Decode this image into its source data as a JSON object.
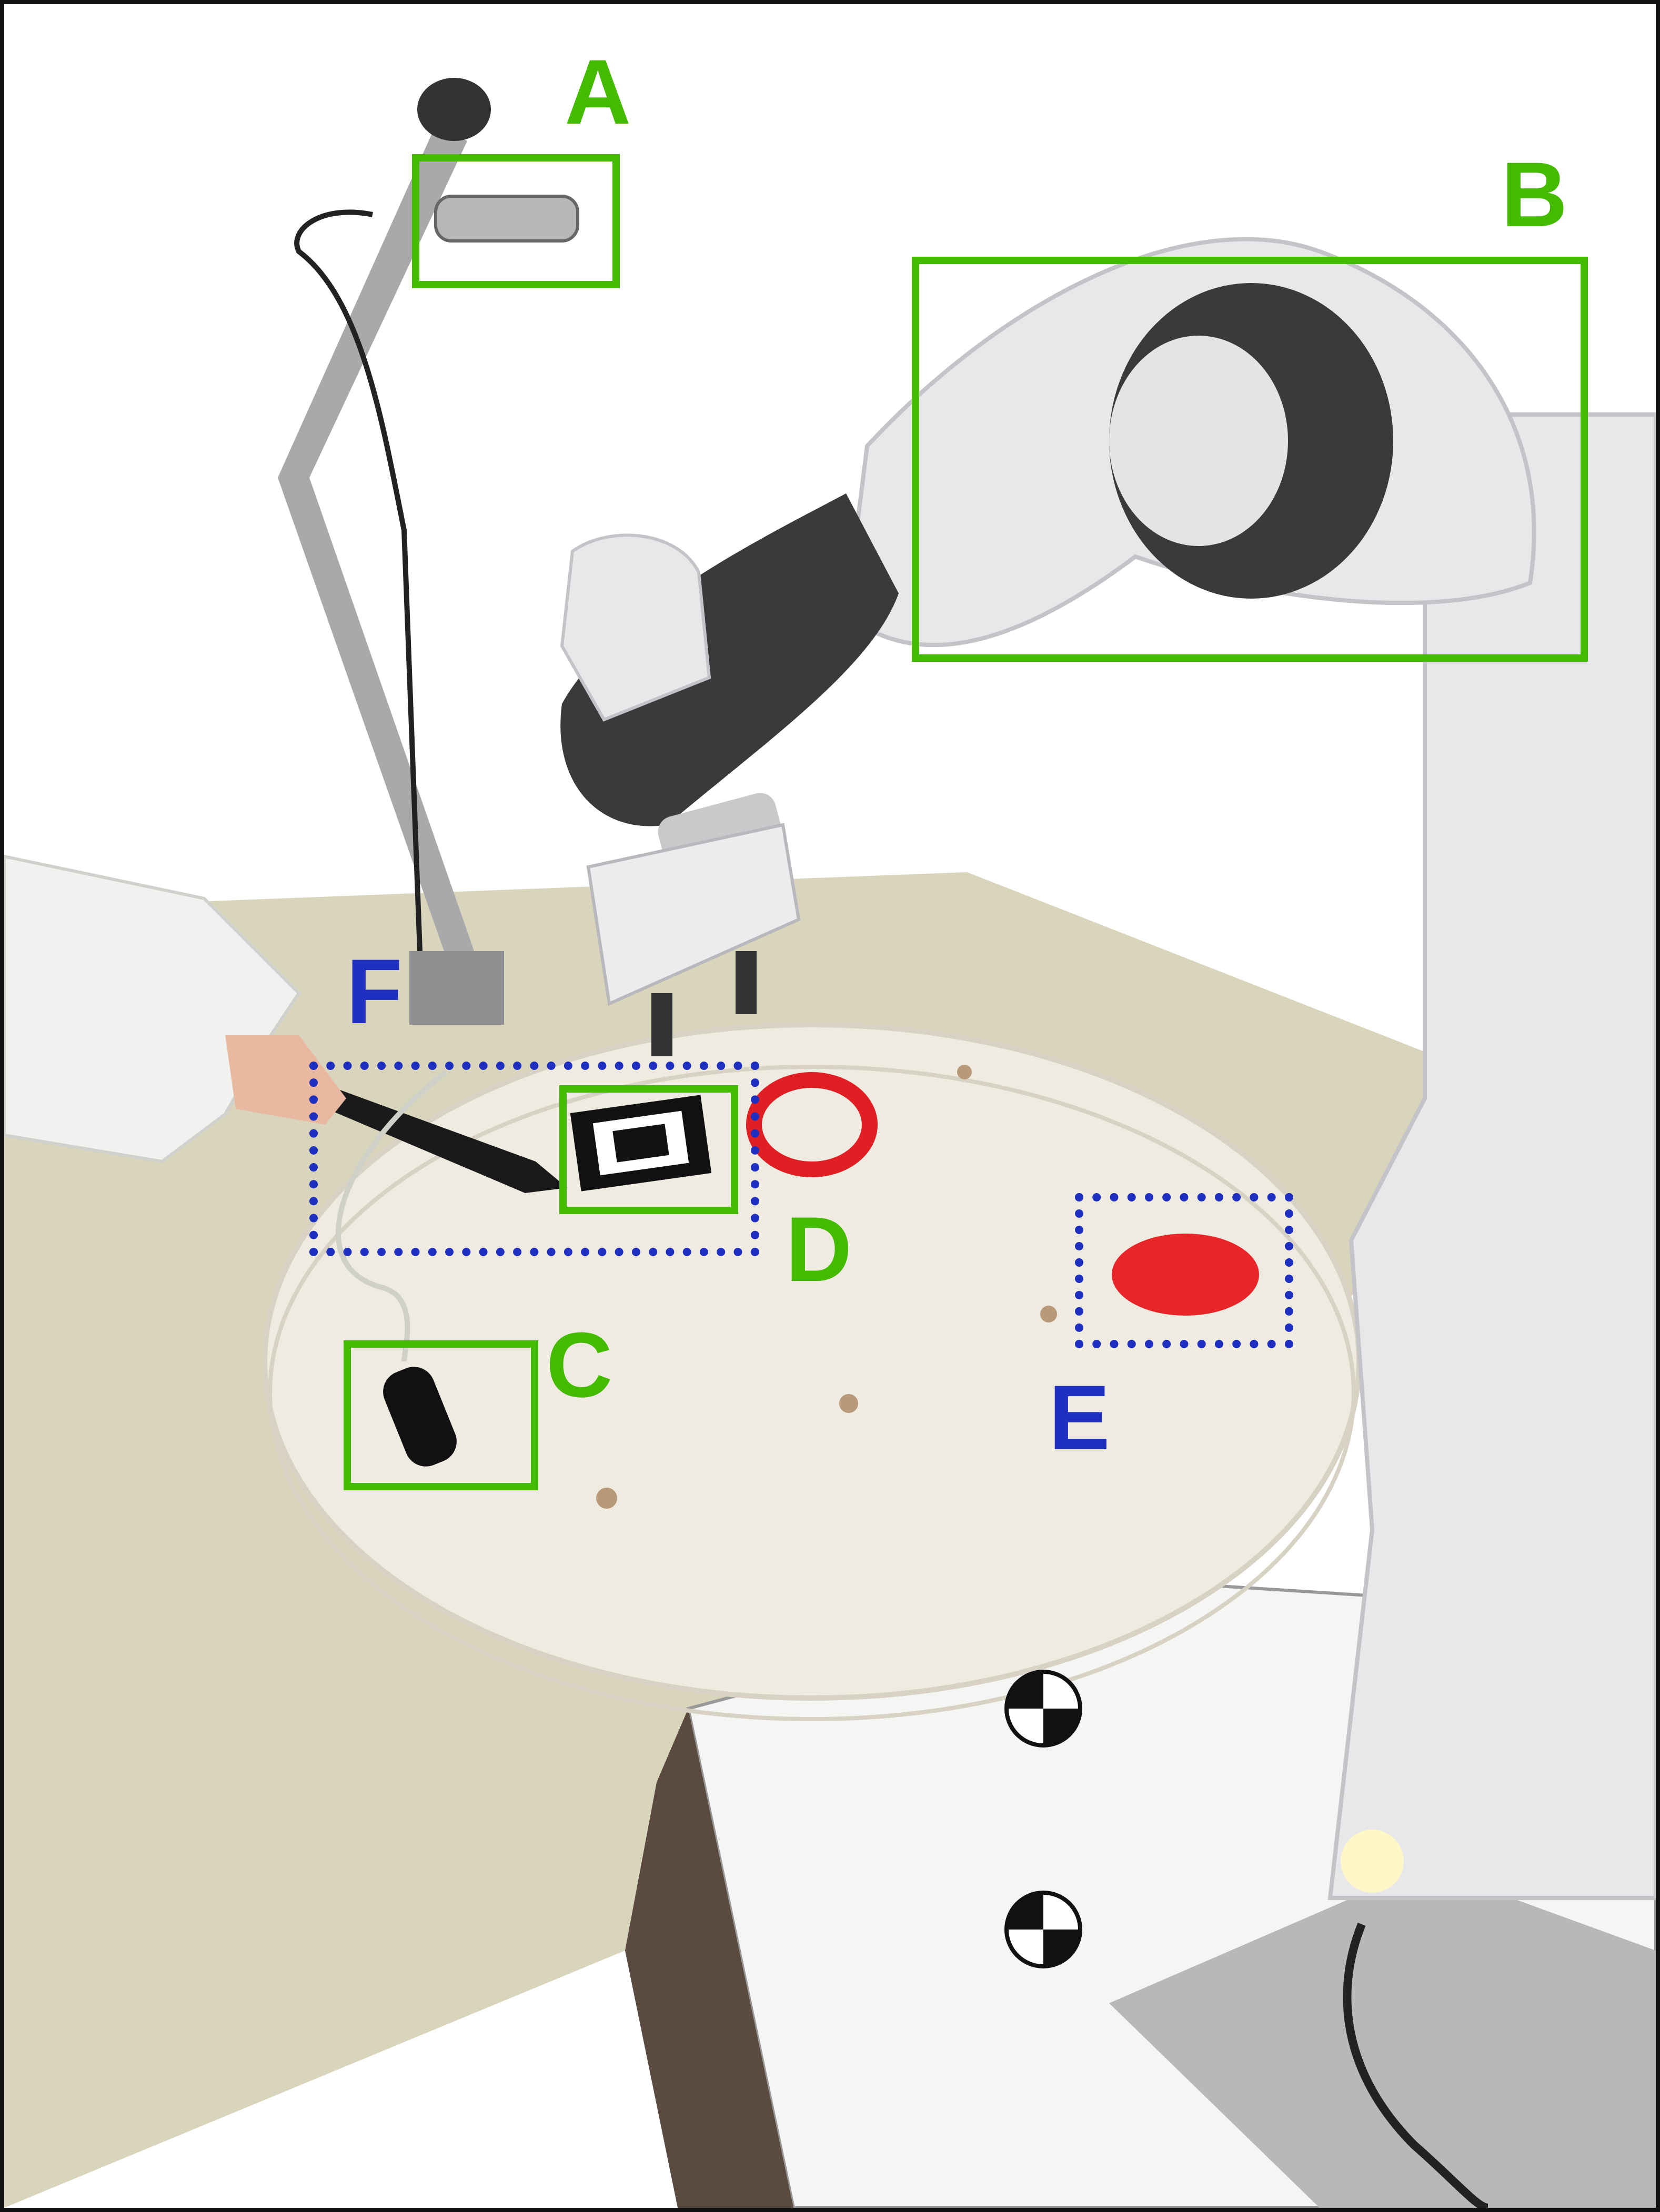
{
  "annotations": [
    {
      "label": "A",
      "style": "solid",
      "color": "#44bb00"
    },
    {
      "label": "B",
      "style": "solid",
      "color": "#44bb00"
    },
    {
      "label": "C",
      "style": "solid",
      "color": "#44bb00"
    },
    {
      "label": "D",
      "style": "solid",
      "color": "#44bb00"
    },
    {
      "label": "E",
      "style": "dotted",
      "color": "#1f2fbf"
    },
    {
      "label": "F",
      "style": "dotted",
      "color": "#1f2fbf"
    }
  ],
  "colors": {
    "green": "#44bb00",
    "blue": "#1f2fbf",
    "table": "#d9d4bc",
    "platform": "#f2eee4",
    "robot": "#e8e8ea",
    "robot_dark": "#3a3a3c",
    "red_target": "#e8262a"
  }
}
